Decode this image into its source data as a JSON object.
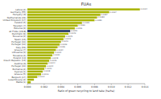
{
  "chart_data": {
    "type": "bar",
    "orientation": "horizontal",
    "title": "FUAs",
    "xlabel": "Ratio of green recycling to land take (ha/ha)",
    "categories": [
      "Latvia (2)",
      "Germany (55)",
      "Hungary (9)",
      "Netherlands (19)",
      "United Kingdom (17)",
      "Ireland (5)",
      "Sweden (7)",
      "Estonia (4)",
      "all FUAs (1318)",
      "Denmark (9)",
      "Slovenia (2)",
      "Spain (13)",
      "Portugal (10)",
      "Portugal (10)",
      "Italy (53)",
      "Greece (7)",
      "Lithuania (4)",
      "Slovakia (4)",
      "Poland (14)",
      "Czech Republic (13)",
      "Austria (6)",
      "Portugal (10)",
      "Romania (2)",
      "Cyprus (1)",
      "Greece (5)",
      "Belgium (17)",
      "Luxembourg (2)",
      "Malta (1)"
    ],
    "values": [
      0.0134,
      0.00975,
      0.0087,
      0.0083,
      0.008,
      0.0065,
      0.006,
      0.00565,
      0.0051,
      0.0049,
      0.0045,
      0.0043,
      0.004,
      0.00385,
      0.0036,
      0.0034,
      0.00318,
      0.00298,
      0.00278,
      0.0026,
      0.00242,
      0.00222,
      0.00202,
      0.00183,
      0.00163,
      0.00118,
      0.00078,
      0.0004
    ],
    "value_labels": [
      "0.0134",
      "0.0097",
      "0.0087",
      "0.0083",
      "0.0080",
      "0.0065",
      "0.0060",
      "0.0056",
      "0.0051",
      "0.0049",
      "0.0045",
      "0.0043",
      "0.0040",
      "0.0039",
      "0.0036",
      "0.0034",
      "0.0032",
      "0.0030",
      "0.0028",
      "0.0026",
      "0.0024",
      "0.0022",
      "0.0020",
      "0.0018",
      "0.0016",
      "0.0012",
      null,
      null
    ],
    "data_labels": true,
    "colors": [
      "#a8b400",
      "#a8b400",
      "#a8b400",
      "#a8b400",
      "#a8b400",
      "#a8b400",
      "#a8b400",
      "#a8b400",
      "#1c2f5e",
      "#a8b400",
      "#a8b400",
      "#a8b400",
      "#a8b400",
      "#a8b400",
      "#a8b400",
      "#a8b400",
      "#a8b400",
      "#a8b400",
      "#a8b400",
      "#a8b400",
      "#a8b400",
      "#a8b400",
      "#a8b400",
      "#a8b400",
      "#a8b400",
      "#a8b400",
      "#a8b400",
      "#a8b400"
    ],
    "xlim": [
      0,
      0.014
    ],
    "xticks": [
      {
        "value": 0.0,
        "label": "0.000"
      },
      {
        "value": 0.002,
        "label": "0.002"
      },
      {
        "value": 0.004,
        "label": "0.004"
      },
      {
        "value": 0.006,
        "label": "0.006"
      },
      {
        "value": 0.008,
        "label": "0.008"
      },
      {
        "value": 0.01,
        "label": "0.010"
      },
      {
        "value": 0.012,
        "label": "0.012"
      },
      {
        "value": 0.014,
        "label": "0.014"
      }
    ],
    "grid": false
  }
}
